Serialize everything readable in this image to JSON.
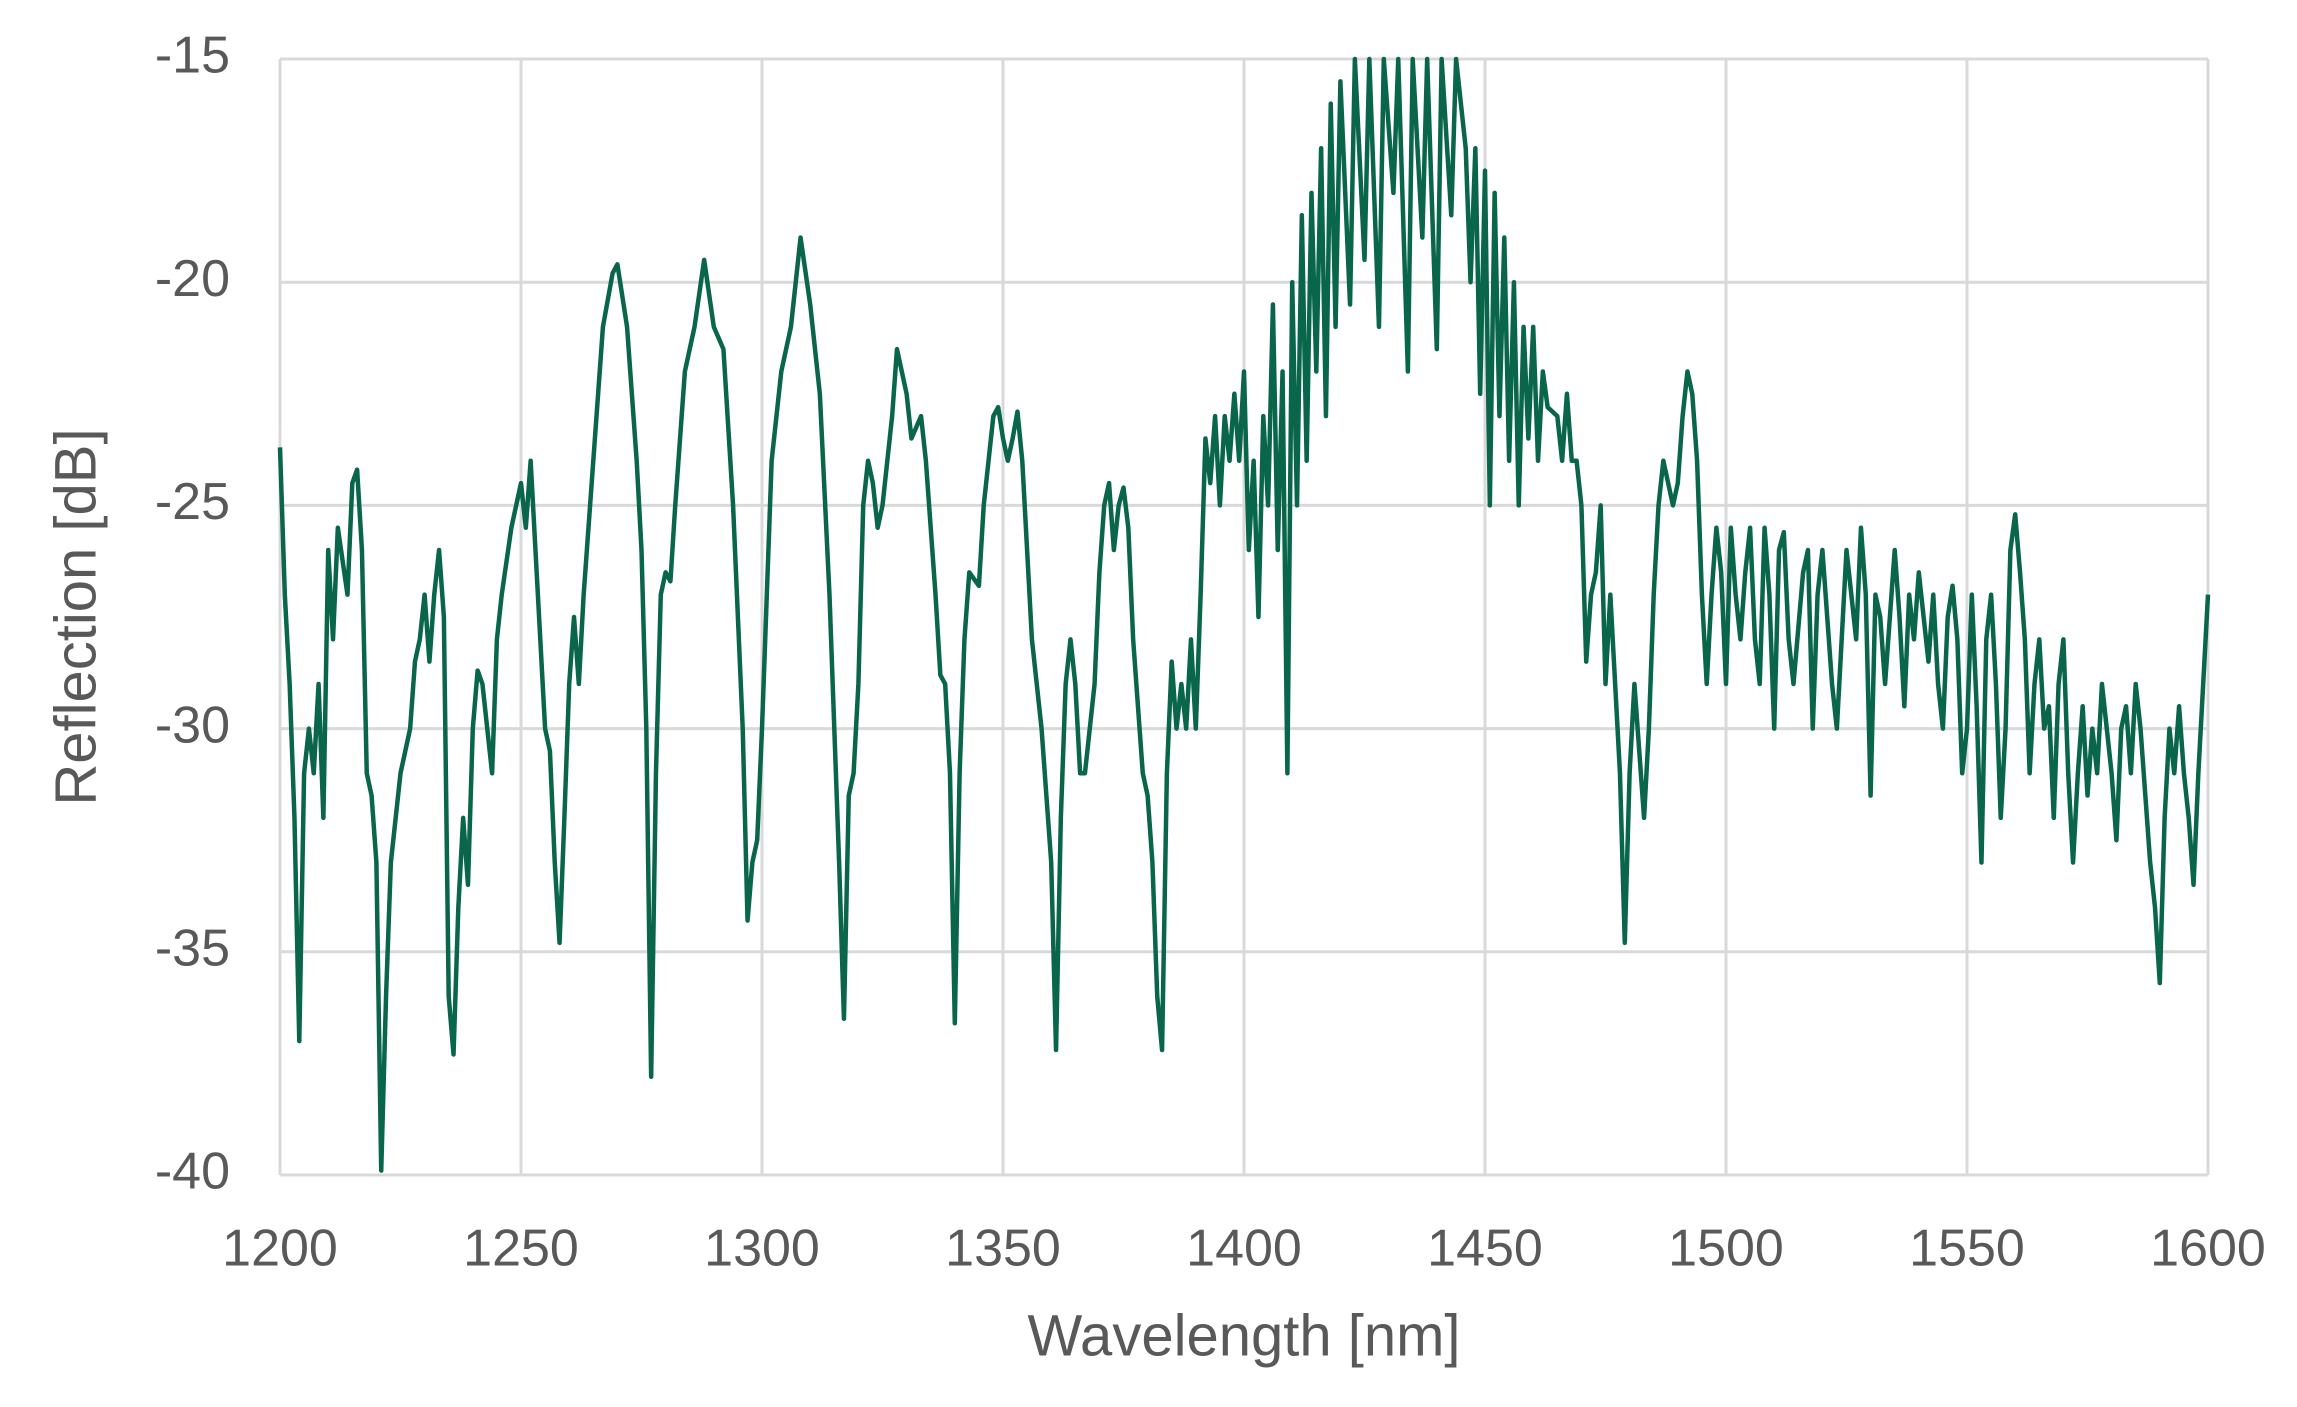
{
  "chart_data": {
    "type": "line",
    "xlabel": "Wavelength [nm]",
    "ylabel": "Reflection [dB]",
    "xlim": [
      1200,
      1600
    ],
    "xticks": [
      1200,
      1250,
      1300,
      1350,
      1400,
      1450,
      1500,
      1550,
      1600
    ],
    "ylim": [
      -40,
      -15
    ],
    "yticks": [
      -40,
      -35,
      -30,
      -25,
      -20,
      -15
    ],
    "grid": true,
    "series": [
      {
        "color": "#0a664a",
        "x": [
          1200,
          1201,
          1202,
          1203,
          1204,
          1205,
          1206,
          1207,
          1208,
          1209,
          1210,
          1211,
          1212,
          1214,
          1215,
          1216,
          1217,
          1218,
          1219,
          1220,
          1221,
          1222,
          1223,
          1225,
          1227,
          1228,
          1229,
          1230,
          1231,
          1232,
          1233,
          1234,
          1235,
          1236,
          1237,
          1238,
          1239,
          1240,
          1241,
          1242,
          1243,
          1244,
          1245,
          1246,
          1248,
          1250,
          1251,
          1252,
          1253,
          1254,
          1255,
          1256,
          1257,
          1258,
          1259,
          1260,
          1261,
          1262,
          1263,
          1265,
          1267,
          1269,
          1270,
          1272,
          1274,
          1275,
          1276,
          1277,
          1278,
          1279,
          1280,
          1281,
          1282,
          1284,
          1286,
          1288,
          1290,
          1292,
          1294,
          1296,
          1297,
          1298,
          1299,
          1300,
          1302,
          1304,
          1306,
          1308,
          1310,
          1312,
          1314,
          1316,
          1317,
          1318,
          1319,
          1320,
          1321,
          1322,
          1323,
          1324,
          1325,
          1327,
          1328,
          1330,
          1331,
          1333,
          1334,
          1336,
          1337,
          1338,
          1339,
          1340,
          1341,
          1342,
          1343,
          1345,
          1346,
          1348,
          1349,
          1350,
          1351,
          1352,
          1353,
          1354,
          1356,
          1358,
          1359,
          1360,
          1361,
          1362,
          1363,
          1364,
          1365,
          1366,
          1367,
          1369,
          1370,
          1371,
          1372,
          1373,
          1374,
          1375,
          1376,
          1377,
          1379,
          1380,
          1381,
          1382,
          1383,
          1384,
          1385,
          1386,
          1387,
          1388,
          1389,
          1390,
          1391,
          1392,
          1393,
          1394,
          1395,
          1396,
          1397,
          1398,
          1399,
          1400,
          1401,
          1402,
          1403,
          1404,
          1405,
          1406,
          1407,
          1408,
          1409,
          1410,
          1411,
          1412,
          1413,
          1414,
          1415,
          1416,
          1417,
          1418,
          1419,
          1420,
          1422,
          1423,
          1425,
          1426,
          1428,
          1429,
          1431,
          1432,
          1434,
          1435,
          1437,
          1438,
          1440,
          1441,
          1443,
          1444,
          1446,
          1447,
          1448,
          1449,
          1450,
          1451,
          1452,
          1453,
          1454,
          1455,
          1456,
          1457,
          1458,
          1459,
          1460,
          1461,
          1462,
          1463,
          1465,
          1466,
          1467,
          1468,
          1469,
          1470,
          1471,
          1472,
          1473,
          1474,
          1475,
          1476,
          1477,
          1478,
          1479,
          1480,
          1481,
          1482,
          1483,
          1484,
          1485,
          1486,
          1487,
          1488,
          1489,
          1490,
          1491,
          1492,
          1493,
          1494,
          1495,
          1496,
          1497,
          1498,
          1499,
          1500,
          1501,
          1502,
          1503,
          1504,
          1505,
          1506,
          1507,
          1508,
          1509,
          1510,
          1511,
          1512,
          1513,
          1514,
          1516,
          1517,
          1518,
          1519,
          1520,
          1522,
          1523,
          1525,
          1526,
          1527,
          1528,
          1529,
          1530,
          1531,
          1532,
          1533,
          1535,
          1536,
          1537,
          1538,
          1539,
          1540,
          1542,
          1543,
          1544,
          1545,
          1546,
          1547,
          1548,
          1549,
          1550,
          1551,
          1552,
          1553,
          1554,
          1555,
          1556,
          1557,
          1558,
          1559,
          1560,
          1561,
          1562,
          1563,
          1564,
          1565,
          1566,
          1567,
          1568,
          1569,
          1570,
          1571,
          1572,
          1573,
          1574,
          1575,
          1576,
          1577,
          1578,
          1579,
          1580,
          1581,
          1582,
          1583,
          1584,
          1585,
          1586,
          1587,
          1588,
          1589,
          1590,
          1591,
          1592,
          1593,
          1594,
          1595,
          1596,
          1597,
          1598,
          1599,
          1600
        ],
        "values": [
          -23.7,
          -27,
          -29,
          -32,
          -37,
          -31,
          -30,
          -31,
          -29,
          -32,
          -26,
          -28,
          -25.5,
          -27,
          -24.5,
          -24.2,
          -26,
          -31,
          -31.5,
          -33,
          -39.9,
          -36,
          -33,
          -31,
          -30,
          -28.5,
          -28,
          -27,
          -28.5,
          -27,
          -26,
          -27.5,
          -36,
          -37.3,
          -34,
          -32,
          -33.5,
          -30,
          -28.7,
          -29,
          -30,
          -31,
          -28,
          -27,
          -25.5,
          -24.5,
          -25.5,
          -24,
          -26,
          -28,
          -30,
          -30.5,
          -33,
          -34.8,
          -32,
          -29,
          -27.5,
          -29,
          -27,
          -24,
          -21,
          -19.8,
          -19.6,
          -21,
          -24,
          -26,
          -30,
          -37.8,
          -31,
          -27,
          -26.5,
          -26.7,
          -25,
          -22,
          -21,
          -19.5,
          -21,
          -21.5,
          -25,
          -30,
          -34.3,
          -33,
          -32.5,
          -30,
          -24,
          -22,
          -21,
          -19,
          -20.5,
          -22.5,
          -27,
          -33,
          -36.5,
          -31.5,
          -31,
          -29,
          -25,
          -24,
          -24.5,
          -25.5,
          -25,
          -23,
          -21.5,
          -22.5,
          -23.5,
          -23,
          -24,
          -27,
          -28.8,
          -29,
          -31,
          -36.6,
          -31,
          -28,
          -26.5,
          -26.8,
          -25,
          -23,
          -22.8,
          -23.5,
          -24,
          -23.5,
          -22.9,
          -24,
          -28,
          -30,
          -31.5,
          -33,
          -37.2,
          -32,
          -29,
          -28,
          -29,
          -31,
          -31,
          -29,
          -26.5,
          -25,
          -24.5,
          -26,
          -25,
          -24.6,
          -25.5,
          -28,
          -31,
          -31.5,
          -33,
          -36,
          -37.2,
          -31,
          -28.5,
          -30,
          -29,
          -30,
          -28,
          -30,
          -27,
          -23.5,
          -24.5,
          -23,
          -25,
          -23,
          -24,
          -22.5,
          -24,
          -22,
          -26,
          -24,
          -27.5,
          -23,
          -25,
          -20.5,
          -26,
          -22,
          -31,
          -20,
          -25,
          -18.5,
          -24,
          -18,
          -22,
          -17,
          -23,
          -16,
          -21,
          -15.5,
          -20.5,
          -15,
          -19.5,
          -15,
          -21,
          -15,
          -18,
          -15,
          -22,
          -15,
          -19,
          -15,
          -21.5,
          -15,
          -18.5,
          -15,
          -17,
          -20,
          -17,
          -22.5,
          -17.5,
          -25,
          -18,
          -23,
          -19,
          -24,
          -20,
          -25,
          -21,
          -23.5,
          -21,
          -24,
          -22,
          -22.8,
          -23,
          -24,
          -22.5,
          -24,
          -24,
          -25,
          -28.5,
          -27,
          -26.5,
          -25,
          -29,
          -27,
          -29,
          -31,
          -34.8,
          -31,
          -29,
          -30.5,
          -32,
          -30,
          -27,
          -25,
          -24,
          -24.5,
          -25,
          -24.5,
          -23,
          -22,
          -22.5,
          -24,
          -27,
          -29,
          -27,
          -25.5,
          -26.5,
          -29,
          -25.5,
          -27,
          -28,
          -26.5,
          -25.5,
          -28,
          -29,
          -25.5,
          -27,
          -30,
          -26,
          -25.6,
          -28,
          -29,
          -26.5,
          -26,
          -30,
          -27,
          -26,
          -29,
          -30,
          -26,
          -27,
          -28,
          -25.5,
          -27,
          -31.5,
          -27,
          -27.5,
          -29,
          -26,
          -27.5,
          -29.5,
          -27,
          -28,
          -26.5,
          -28.5,
          -27,
          -29,
          -30,
          -27.5,
          -26.8,
          -28,
          -31,
          -30,
          -27,
          -29.5,
          -33,
          -28,
          -27,
          -29,
          -32,
          -30,
          -26,
          -25.2,
          -26.5,
          -28,
          -31,
          -29,
          -28,
          -30,
          -29.5,
          -32,
          -29,
          -28,
          -31,
          -33,
          -31,
          -29.5,
          -31.5,
          -30,
          -31,
          -29,
          -30,
          -31,
          -32.5,
          -30,
          -29.5,
          -31,
          -29,
          -30,
          -31.5,
          -33,
          -34,
          -35.7,
          -32,
          -30,
          -31,
          -29.5,
          -31,
          -32,
          -33.5,
          -31,
          -29,
          -27
        ]
      }
    ]
  }
}
